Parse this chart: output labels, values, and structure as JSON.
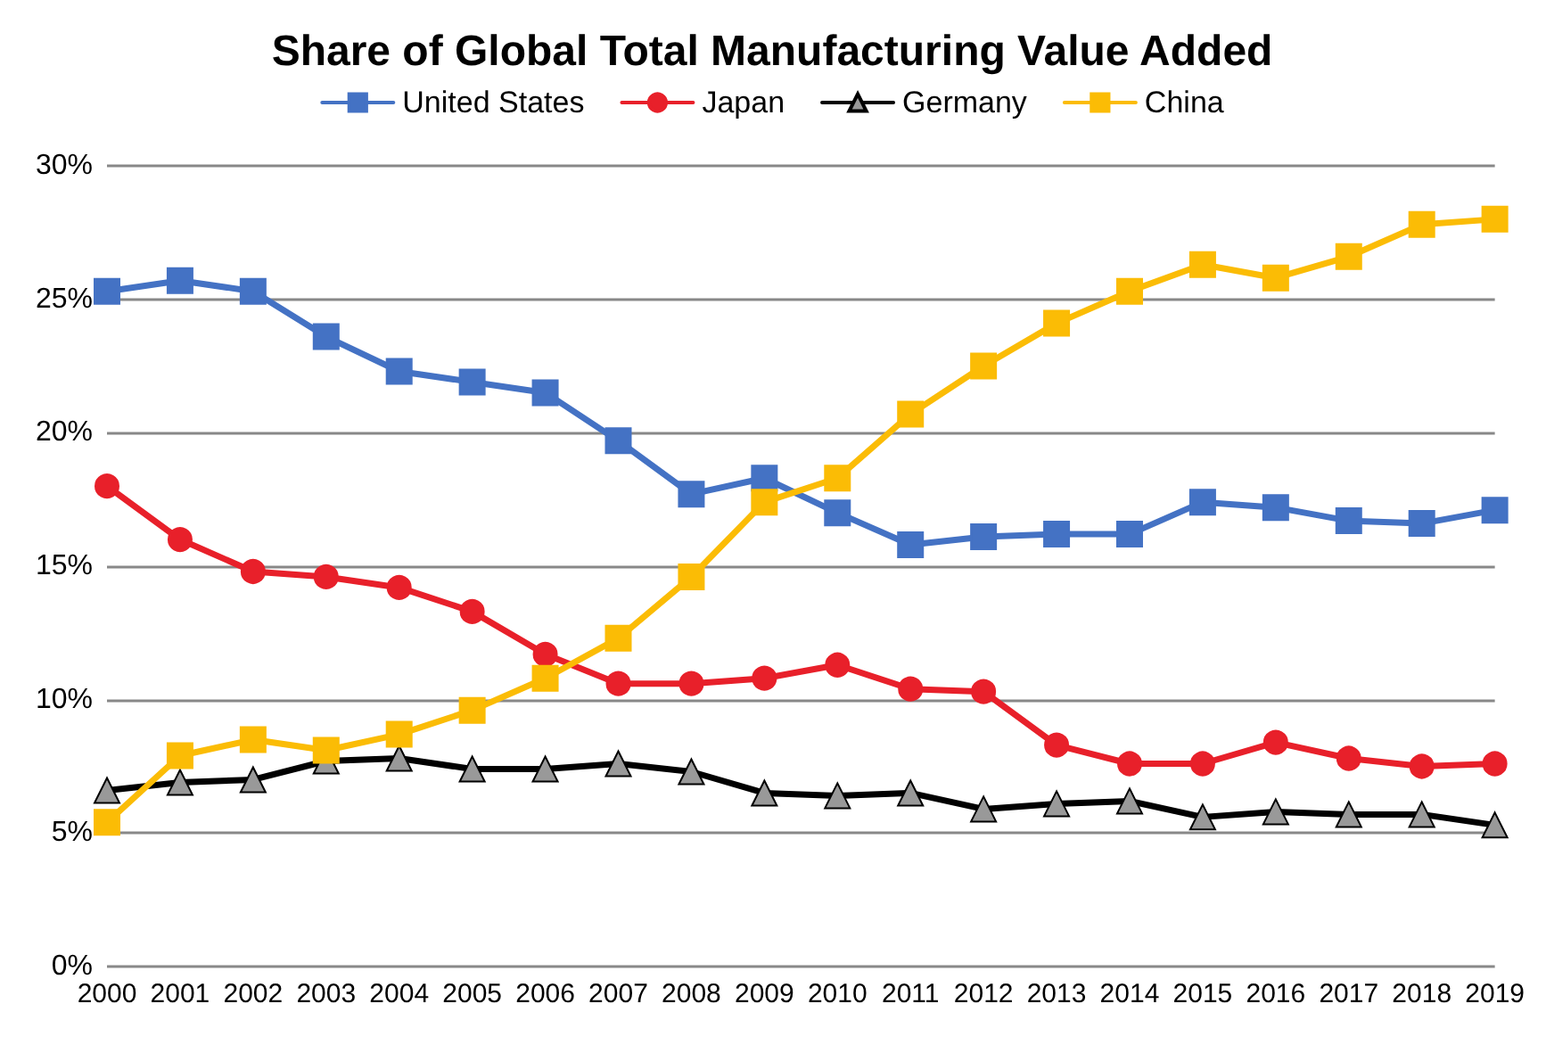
{
  "chart_data": {
    "type": "line",
    "title": "Share of Global Total Manufacturing Value Added",
    "categories": [
      "2000",
      "2001",
      "2002",
      "2003",
      "2004",
      "2005",
      "2006",
      "2007",
      "2008",
      "2009",
      "2010",
      "2011",
      "2012",
      "2013",
      "2014",
      "2015",
      "2016",
      "2017",
      "2018",
      "2019"
    ],
    "series": [
      {
        "name": "United States",
        "color": "#4472c4",
        "marker": "square",
        "values": [
          25.3,
          25.7,
          25.3,
          23.6,
          22.3,
          21.9,
          21.5,
          19.7,
          17.7,
          18.3,
          17.0,
          15.8,
          16.1,
          16.2,
          16.2,
          17.4,
          17.2,
          16.7,
          16.6,
          17.1
        ]
      },
      {
        "name": "Japan",
        "color": "#e8202a",
        "marker": "circle",
        "values": [
          18.0,
          16.0,
          14.8,
          14.6,
          14.2,
          13.3,
          11.7,
          10.6,
          10.6,
          10.8,
          11.3,
          10.4,
          10.3,
          8.3,
          7.6,
          7.6,
          8.4,
          7.8,
          7.5,
          7.6
        ]
      },
      {
        "name": "Germany",
        "color": "#000000",
        "marker": "triangle",
        "values": [
          6.6,
          6.9,
          7.0,
          7.7,
          7.8,
          7.4,
          7.4,
          7.6,
          7.3,
          6.5,
          6.4,
          6.5,
          5.9,
          6.1,
          6.2,
          5.6,
          5.8,
          5.7,
          5.7,
          5.3
        ]
      },
      {
        "name": "China",
        "color": "#fbbc05",
        "marker": "square",
        "values": [
          5.4,
          7.9,
          8.5,
          8.1,
          8.7,
          9.6,
          10.8,
          12.3,
          14.6,
          17.4,
          18.3,
          20.7,
          22.5,
          24.1,
          25.3,
          26.3,
          25.8,
          26.6,
          27.8,
          28.0
        ]
      }
    ],
    "ylim": [
      0,
      30
    ],
    "yticks": [
      {
        "value": 0,
        "label": "0%"
      },
      {
        "value": 5,
        "label": "5%"
      },
      {
        "value": 10,
        "label": "10%"
      },
      {
        "value": 15,
        "label": "15%"
      },
      {
        "value": 20,
        "label": "20%"
      },
      {
        "value": 25,
        "label": "25%"
      },
      {
        "value": 30,
        "label": "30%"
      }
    ],
    "grid": "y",
    "legend": "top",
    "line_style": "solid"
  }
}
